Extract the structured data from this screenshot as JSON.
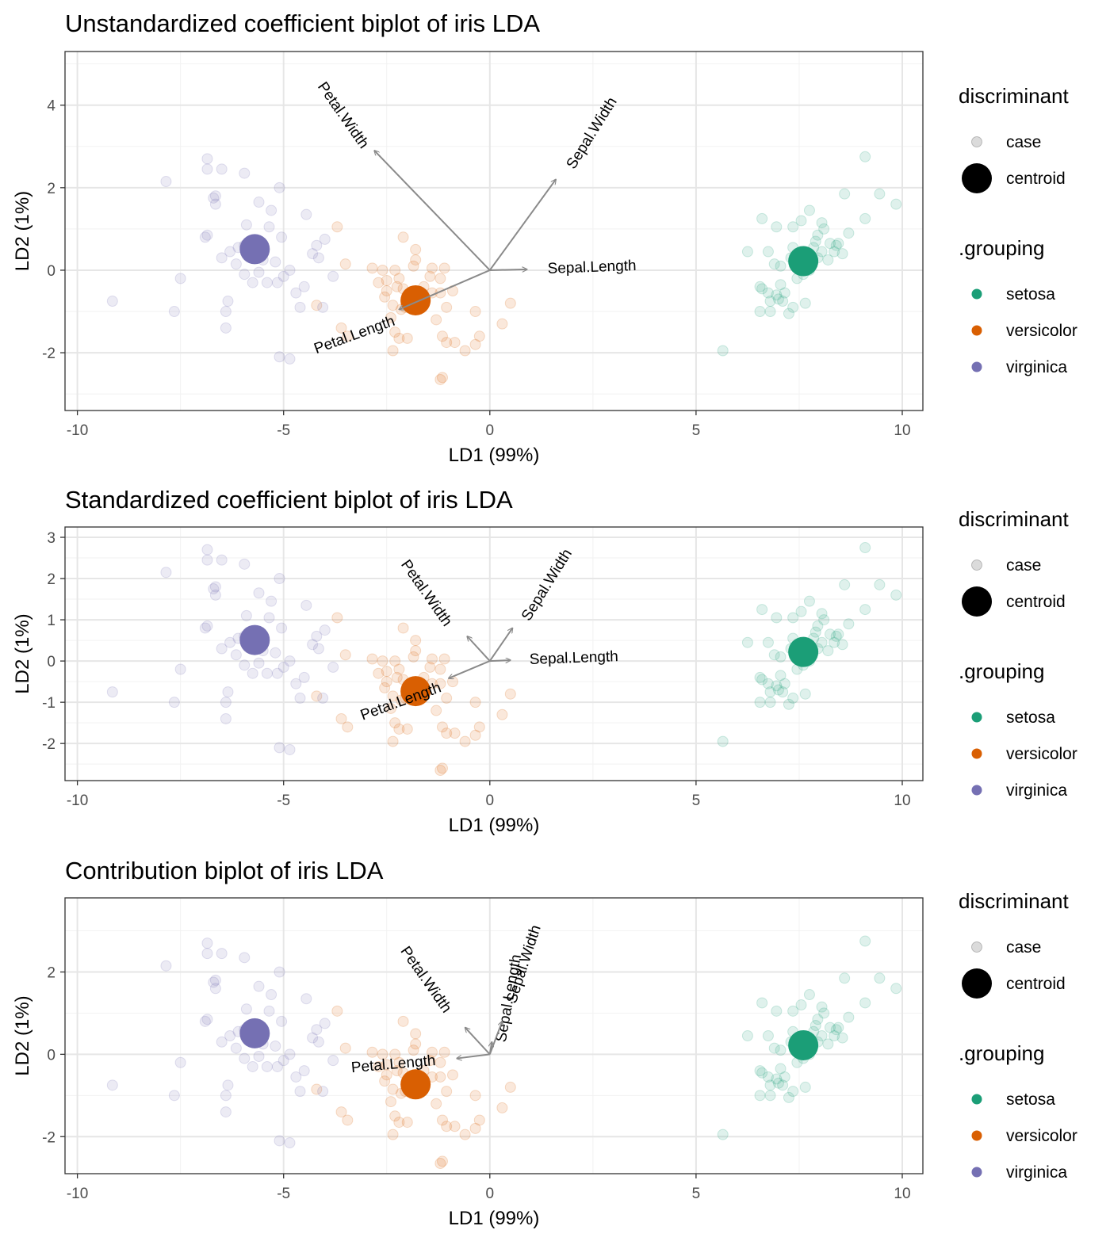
{
  "legend": {
    "discriminant_title": "discriminant",
    "discriminant_items": [
      "case",
      "centroid"
    ],
    "grouping_title": ".grouping",
    "grouping_items": [
      "setosa",
      "versicolor",
      "virginica"
    ]
  },
  "colors": {
    "setosa": "#1b9e77",
    "versicolor": "#d95f02",
    "virginica": "#7570b3",
    "arrow": "#8a8a8a"
  },
  "chart_data": [
    {
      "type": "scatter",
      "title": "Unstandardized coefficient biplot of iris LDA",
      "xlabel": "LD1 (99%)",
      "ylabel": "LD2 (1%)",
      "xlim": [
        -10.3,
        10.5
      ],
      "ylim": [
        -3.4,
        5.3
      ],
      "xticks": [
        -10,
        -5,
        0,
        5,
        10
      ],
      "yticks": [
        -2,
        0,
        2,
        4
      ],
      "centroids": [
        {
          "group": "setosa",
          "x": 7.6,
          "y": 0.22
        },
        {
          "group": "versicolor",
          "x": -1.8,
          "y": -0.73
        },
        {
          "group": "virginica",
          "x": -5.7,
          "y": 0.51
        }
      ],
      "vectors": [
        {
          "label": "Petal.Width",
          "x": -2.8,
          "y": 2.9
        },
        {
          "label": "Sepal.Width",
          "x": 1.6,
          "y": 2.2
        },
        {
          "label": "Sepal.Length",
          "x": 0.9,
          "y": 0.02
        },
        {
          "label": "Petal.Length",
          "x": -2.2,
          "y": -0.95
        }
      ]
    },
    {
      "type": "scatter",
      "title": "Standardized coefficient biplot of iris LDA",
      "xlabel": "LD1 (99%)",
      "ylabel": "LD2 (1%)",
      "xlim": [
        -10.3,
        10.5
      ],
      "ylim": [
        -2.9,
        3.25
      ],
      "xticks": [
        -10,
        -5,
        0,
        5,
        10
      ],
      "yticks": [
        -2,
        -1,
        0,
        1,
        2,
        3
      ],
      "centroids": [
        {
          "group": "setosa",
          "x": 7.6,
          "y": 0.22
        },
        {
          "group": "versicolor",
          "x": -1.8,
          "y": -0.73
        },
        {
          "group": "virginica",
          "x": -5.7,
          "y": 0.51
        }
      ],
      "vectors": [
        {
          "label": "Petal.Width",
          "x": -0.55,
          "y": 0.6
        },
        {
          "label": "Sepal.Width",
          "x": 0.55,
          "y": 0.8
        },
        {
          "label": "Sepal.Length",
          "x": 0.5,
          "y": 0.02
        },
        {
          "label": "Petal.Length",
          "x": -1.0,
          "y": -0.42
        }
      ]
    },
    {
      "type": "scatter",
      "title": "Contribution biplot of iris LDA",
      "xlabel": "LD1 (99%)",
      "ylabel": "LD2 (1%)",
      "xlim": [
        -10.3,
        10.5
      ],
      "ylim": [
        -2.9,
        3.8
      ],
      "xticks": [
        -10,
        -5,
        0,
        5,
        10
      ],
      "yticks": [
        -2,
        0,
        2
      ],
      "centroids": [
        {
          "group": "setosa",
          "x": 7.6,
          "y": 0.22
        },
        {
          "group": "versicolor",
          "x": -1.8,
          "y": -0.73
        },
        {
          "group": "virginica",
          "x": -5.7,
          "y": 0.51
        }
      ],
      "vectors": [
        {
          "label": "Petal.Width",
          "x": -0.6,
          "y": 0.65
        },
        {
          "label": "Sepal.Length",
          "x": 0.05,
          "y": 0.3
        },
        {
          "label": "Sepal.Width",
          "x": 0.3,
          "y": 0.8
        },
        {
          "label": "Petal.Length",
          "x": -0.8,
          "y": -0.1
        }
      ]
    }
  ],
  "cases": {
    "setosa": [
      [
        7.6,
        0.22
      ],
      [
        8.1,
        1.0
      ],
      [
        8.4,
        0.6
      ],
      [
        7.9,
        0.7
      ],
      [
        9.1,
        2.75
      ],
      [
        9.45,
        1.85
      ],
      [
        9.85,
        1.6
      ],
      [
        8.6,
        1.85
      ],
      [
        9.1,
        1.25
      ],
      [
        8.7,
        0.9
      ],
      [
        7.75,
        1.45
      ],
      [
        7.35,
        1.05
      ],
      [
        6.6,
        1.25
      ],
      [
        6.95,
        1.05
      ],
      [
        7.55,
        1.2
      ],
      [
        8.05,
        1.15
      ],
      [
        6.25,
        0.45
      ],
      [
        6.75,
        0.45
      ],
      [
        7.35,
        0.55
      ],
      [
        7.55,
        0.45
      ],
      [
        7.85,
        0.55
      ],
      [
        8.05,
        0.45
      ],
      [
        8.25,
        0.65
      ],
      [
        8.35,
        0.45
      ],
      [
        8.55,
        0.4
      ],
      [
        7.05,
        0.1
      ],
      [
        7.75,
        0.0
      ],
      [
        7.45,
        -0.2
      ],
      [
        7.05,
        -0.35
      ],
      [
        6.55,
        -0.4
      ],
      [
        6.75,
        -0.55
      ],
      [
        6.95,
        -0.6
      ],
      [
        6.8,
        -0.75
      ],
      [
        7.0,
        -0.7
      ],
      [
        7.1,
        -0.75
      ],
      [
        7.35,
        -0.9
      ],
      [
        7.65,
        -0.8
      ],
      [
        6.55,
        -1.0
      ],
      [
        6.8,
        -1.0
      ],
      [
        7.25,
        -1.05
      ],
      [
        5.65,
        -1.95
      ],
      [
        7.15,
        -0.55
      ],
      [
        7.95,
        0.3
      ],
      [
        8.2,
        0.25
      ],
      [
        6.6,
        -0.45
      ],
      [
        7.3,
        0.3
      ],
      [
        8.45,
        0.65
      ],
      [
        6.9,
        0.15
      ],
      [
        7.6,
        -0.1
      ],
      [
        7.95,
        0.85
      ]
    ],
    "versicolor": [
      [
        -1.8,
        -0.73
      ],
      [
        -2.1,
        0.8
      ],
      [
        -1.8,
        0.25
      ],
      [
        -1.8,
        0.5
      ],
      [
        -1.4,
        0.05
      ],
      [
        -1.1,
        0.05
      ],
      [
        -1.2,
        -0.2
      ],
      [
        -1.45,
        -0.15
      ],
      [
        -2.3,
        0.0
      ],
      [
        -2.6,
        0.0
      ],
      [
        -2.85,
        0.05
      ],
      [
        -2.5,
        -0.25
      ],
      [
        -2.7,
        -0.3
      ],
      [
        -2.25,
        -0.4
      ],
      [
        -2.1,
        -0.45
      ],
      [
        -2.5,
        -0.5
      ],
      [
        -2.55,
        -0.65
      ],
      [
        -2.35,
        -0.85
      ],
      [
        -2.15,
        -0.95
      ],
      [
        -2.4,
        -1.15
      ],
      [
        -2.3,
        -1.5
      ],
      [
        -2.0,
        -1.65
      ],
      [
        -2.2,
        -1.65
      ],
      [
        -2.35,
        -1.95
      ],
      [
        -1.2,
        -0.55
      ],
      [
        -1.05,
        -0.9
      ],
      [
        -1.3,
        -1.2
      ],
      [
        -1.15,
        -1.6
      ],
      [
        -1.05,
        -1.75
      ],
      [
        -0.85,
        -1.75
      ],
      [
        -0.6,
        -1.95
      ],
      [
        -0.35,
        -1.8
      ],
      [
        -0.25,
        -1.6
      ],
      [
        -0.35,
        -1.0
      ],
      [
        0.3,
        -1.3
      ],
      [
        0.5,
        -0.8
      ],
      [
        -1.4,
        -0.55
      ],
      [
        -1.6,
        -0.4
      ],
      [
        -3.7,
        1.05
      ],
      [
        -3.5,
        0.15
      ],
      [
        -3.6,
        -1.4
      ],
      [
        -3.45,
        -1.6
      ],
      [
        -4.2,
        -0.85
      ],
      [
        -2.2,
        -0.2
      ],
      [
        -1.15,
        -2.6
      ],
      [
        -1.2,
        -2.65
      ],
      [
        -1.85,
        0.1
      ],
      [
        -1.6,
        -0.65
      ],
      [
        -2.05,
        -0.9
      ],
      [
        -0.9,
        -0.5
      ]
    ],
    "virginica": [
      [
        -5.7,
        0.51
      ],
      [
        -7.85,
        2.15
      ],
      [
        -6.85,
        2.7
      ],
      [
        -6.85,
        2.45
      ],
      [
        -6.5,
        2.45
      ],
      [
        -5.95,
        2.35
      ],
      [
        -5.1,
        2.0
      ],
      [
        -6.65,
        1.8
      ],
      [
        -6.7,
        1.75
      ],
      [
        -6.65,
        1.6
      ],
      [
        -5.6,
        1.65
      ],
      [
        -5.3,
        1.45
      ],
      [
        -4.45,
        1.35
      ],
      [
        -5.35,
        1.05
      ],
      [
        -6.9,
        0.8
      ],
      [
        -6.85,
        0.85
      ],
      [
        -6.3,
        0.45
      ],
      [
        -6.1,
        0.55
      ],
      [
        -5.95,
        0.6
      ],
      [
        -5.65,
        0.6
      ],
      [
        -5.05,
        0.8
      ],
      [
        -6.5,
        0.3
      ],
      [
        -5.5,
        0.25
      ],
      [
        -5.2,
        0.2
      ],
      [
        -4.85,
        0.0
      ],
      [
        -5.0,
        -0.15
      ],
      [
        -4.3,
        0.4
      ],
      [
        -4.2,
        0.6
      ],
      [
        -4.0,
        0.75
      ],
      [
        -5.95,
        -0.1
      ],
      [
        -5.6,
        -0.05
      ],
      [
        -5.75,
        -0.3
      ],
      [
        -5.4,
        -0.3
      ],
      [
        -5.15,
        -0.3
      ],
      [
        -4.5,
        -0.4
      ],
      [
        -3.8,
        -0.15
      ],
      [
        -7.5,
        -0.2
      ],
      [
        -6.35,
        -0.75
      ],
      [
        -6.4,
        -1.0
      ],
      [
        -6.4,
        -1.4
      ],
      [
        -7.65,
        -1.0
      ],
      [
        -9.15,
        -0.75
      ],
      [
        -5.1,
        -2.1
      ],
      [
        -4.85,
        -2.15
      ],
      [
        -4.7,
        -0.55
      ],
      [
        -4.6,
        -0.9
      ],
      [
        -4.05,
        -0.9
      ],
      [
        -4.15,
        0.3
      ],
      [
        -6.15,
        0.15
      ],
      [
        -5.9,
        1.1
      ]
    ]
  }
}
